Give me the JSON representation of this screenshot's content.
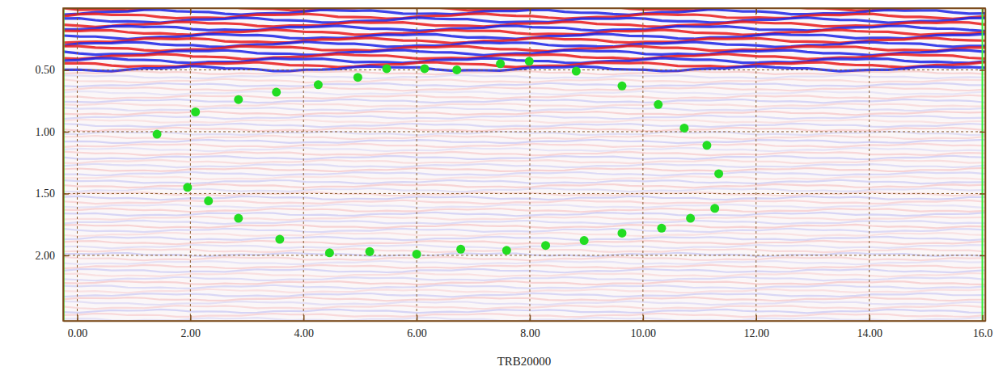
{
  "chart_data": {
    "type": "scatter",
    "x_label": "TRB20000",
    "x": [
      1.41,
      2.09,
      2.85,
      3.52,
      4.26,
      4.96,
      5.47,
      6.14,
      6.71,
      7.48,
      7.99,
      8.82,
      9.63,
      10.27,
      10.73,
      11.13,
      11.34,
      11.27,
      10.84,
      10.33,
      9.63,
      8.96,
      8.28,
      7.59,
      6.78,
      6.0,
      5.17,
      4.46,
      3.58,
      2.85,
      2.32,
      1.95
    ],
    "y": [
      1.02,
      0.84,
      0.74,
      0.68,
      0.62,
      0.56,
      0.49,
      0.49,
      0.5,
      0.45,
      0.43,
      0.51,
      0.63,
      0.78,
      0.97,
      1.11,
      1.34,
      1.62,
      1.7,
      1.78,
      1.82,
      1.88,
      1.92,
      1.96,
      1.95,
      1.99,
      1.97,
      1.98,
      1.87,
      1.7,
      1.56,
      1.45
    ],
    "color": "#22dd22",
    "marker": "circle",
    "xlim": [
      -0.25,
      16.05
    ],
    "ylim": [
      0,
      2.53
    ],
    "xticks": [
      {
        "value": 0,
        "label": "0.00"
      },
      {
        "value": 2,
        "label": "2.00"
      },
      {
        "value": 4,
        "label": "4.00"
      },
      {
        "value": 6,
        "label": "6.00"
      },
      {
        "value": 8,
        "label": "8.00"
      },
      {
        "value": 10,
        "label": "10.00"
      },
      {
        "value": 12,
        "label": "12.00"
      },
      {
        "value": 14,
        "label": "14.00"
      },
      {
        "value": 16,
        "label": "16.0"
      }
    ],
    "yticks": [
      {
        "value": 0.5,
        "label": "0.50"
      },
      {
        "value": 1,
        "label": "1.00"
      },
      {
        "value": 1.5,
        "label": "1.50"
      },
      {
        "value": 2,
        "label": "2.00"
      }
    ],
    "grid": true,
    "vlines": {
      "values": [
        -0.24,
        16.0
      ],
      "color": "#33ee33"
    }
  }
}
